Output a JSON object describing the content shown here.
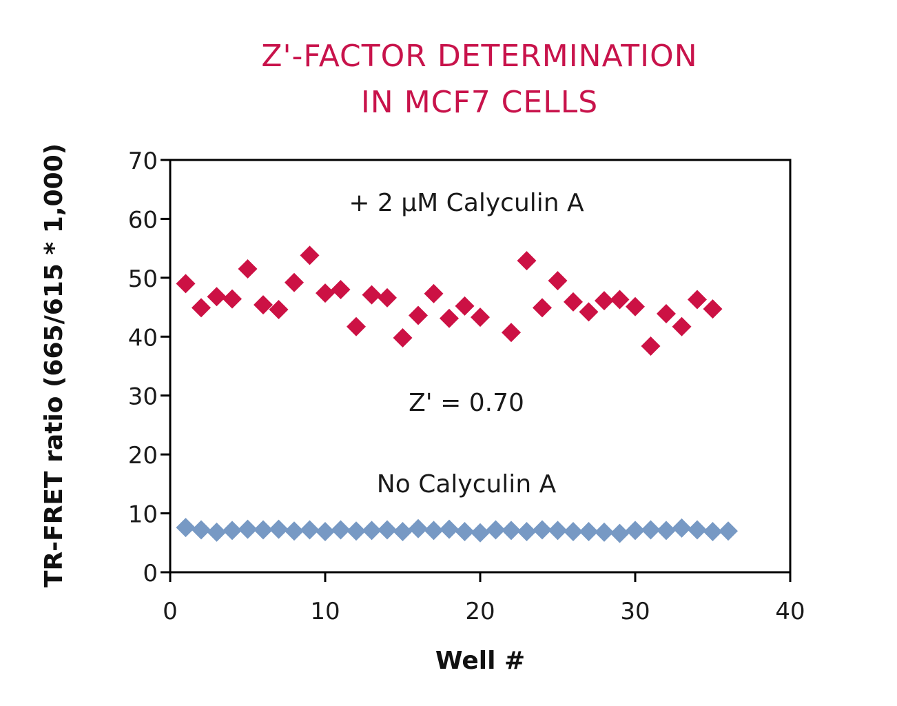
{
  "chart_data": {
    "type": "scatter",
    "title_lines": [
      "Z'-FACTOR DETERMINATION",
      "IN MCF7 CELLS"
    ],
    "xlabel": "Well #",
    "ylabel": "TR-FRET ratio (665/615 * 1,000)",
    "xlim": [
      0,
      40
    ],
    "ylim": [
      0,
      70
    ],
    "xticks": [
      0,
      10,
      20,
      30,
      40
    ],
    "yticks": [
      0,
      10,
      20,
      30,
      40,
      50,
      60,
      70
    ],
    "grid": false,
    "legend": "none",
    "annotations": {
      "treated": "+ 2 μM Calyculin A",
      "zprime": "Z' = 0.70",
      "untreated": "No Calyculin A"
    },
    "series": [
      {
        "color": "#cc1144",
        "marker": "diamond",
        "x": [
          1,
          2,
          3,
          4,
          5,
          6,
          7,
          8,
          9,
          10,
          11,
          12,
          13,
          14,
          15,
          16,
          17,
          18,
          19,
          20,
          22,
          23,
          24,
          25,
          26,
          27,
          28,
          29,
          30,
          31,
          32,
          33,
          34,
          35
        ],
        "y": [
          49.0,
          44.9,
          46.8,
          46.4,
          51.5,
          45.4,
          44.6,
          49.2,
          53.8,
          47.4,
          48.0,
          41.7,
          47.1,
          46.6,
          39.8,
          43.6,
          47.3,
          43.1,
          45.2,
          43.3,
          40.7,
          52.9,
          44.9,
          49.5,
          45.9,
          44.2,
          46.1,
          46.3,
          45.1,
          38.4,
          43.9,
          41.7,
          46.3,
          44.7
        ]
      },
      {
        "color": "#7799c4",
        "marker": "diamond",
        "x": [
          1,
          2,
          3,
          4,
          5,
          6,
          7,
          8,
          9,
          10,
          11,
          12,
          13,
          14,
          15,
          16,
          17,
          18,
          19,
          20,
          21,
          22,
          23,
          24,
          25,
          26,
          27,
          28,
          29,
          30,
          31,
          32,
          33,
          34,
          35,
          36
        ],
        "y": [
          7.6,
          7.2,
          6.8,
          7.1,
          7.3,
          7.2,
          7.3,
          7.0,
          7.2,
          6.9,
          7.2,
          7.0,
          7.1,
          7.2,
          6.9,
          7.4,
          7.1,
          7.3,
          6.9,
          6.7,
          7.2,
          7.1,
          6.9,
          7.2,
          7.1,
          6.9,
          6.9,
          6.8,
          6.6,
          7.1,
          7.2,
          7.1,
          7.5,
          7.2,
          6.9,
          7.0
        ]
      }
    ]
  }
}
